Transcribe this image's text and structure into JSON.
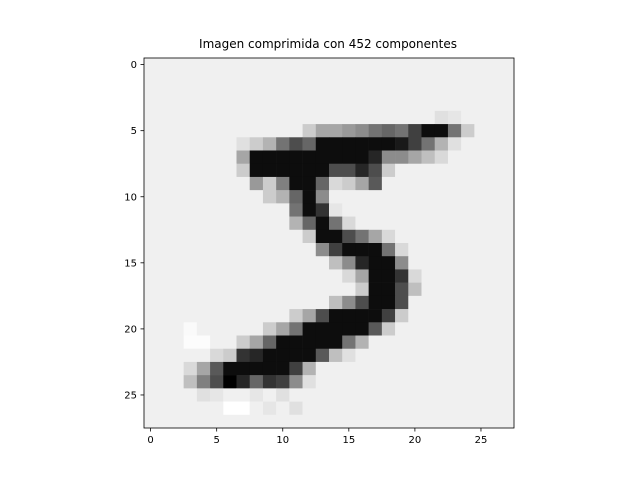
{
  "chart_data": {
    "type": "heatmap",
    "title": "Imagen comprimida con 452 componentes",
    "xlabel": "",
    "ylabel": "",
    "colormap": "gray_r",
    "value_range": [
      0,
      1
    ],
    "xlim": [
      -0.5,
      27.5
    ],
    "ylim": [
      27.5,
      -0.5
    ],
    "x_ticks": [
      0,
      5,
      10,
      15,
      20,
      25
    ],
    "y_ticks": [
      0,
      5,
      10,
      15,
      20,
      25
    ],
    "x_tick_labels": [
      "0",
      "5",
      "10",
      "15",
      "20",
      "25"
    ],
    "y_tick_labels": [
      "0",
      "5",
      "10",
      "15",
      "20",
      "25"
    ],
    "background_level": 0.06,
    "grid": false,
    "rows": 28,
    "cols": 28,
    "cells": [
      {
        "r": 4,
        "c": 22,
        "v": 0.12
      },
      {
        "r": 4,
        "c": 23,
        "v": 0.1
      },
      {
        "r": 5,
        "c": 12,
        "v": 0.2
      },
      {
        "r": 5,
        "c": 13,
        "v": 0.35
      },
      {
        "r": 5,
        "c": 14,
        "v": 0.35
      },
      {
        "r": 5,
        "c": 15,
        "v": 0.4
      },
      {
        "r": 5,
        "c": 16,
        "v": 0.45
      },
      {
        "r": 5,
        "c": 17,
        "v": 0.55
      },
      {
        "r": 5,
        "c": 18,
        "v": 0.6
      },
      {
        "r": 5,
        "c": 19,
        "v": 0.55
      },
      {
        "r": 5,
        "c": 20,
        "v": 0.75
      },
      {
        "r": 5,
        "c": 21,
        "v": 0.95
      },
      {
        "r": 5,
        "c": 22,
        "v": 0.95
      },
      {
        "r": 5,
        "c": 23,
        "v": 0.55
      },
      {
        "r": 5,
        "c": 24,
        "v": 0.2
      },
      {
        "r": 6,
        "c": 7,
        "v": 0.12
      },
      {
        "r": 6,
        "c": 8,
        "v": 0.2
      },
      {
        "r": 6,
        "c": 9,
        "v": 0.3
      },
      {
        "r": 6,
        "c": 10,
        "v": 0.55
      },
      {
        "r": 6,
        "c": 11,
        "v": 0.7
      },
      {
        "r": 6,
        "c": 12,
        "v": 0.6
      },
      {
        "r": 6,
        "c": 13,
        "v": 0.95
      },
      {
        "r": 6,
        "c": 14,
        "v": 0.95
      },
      {
        "r": 6,
        "c": 15,
        "v": 0.95
      },
      {
        "r": 6,
        "c": 16,
        "v": 0.95
      },
      {
        "r": 6,
        "c": 17,
        "v": 0.95
      },
      {
        "r": 6,
        "c": 18,
        "v": 0.95
      },
      {
        "r": 6,
        "c": 19,
        "v": 0.9
      },
      {
        "r": 6,
        "c": 20,
        "v": 0.75
      },
      {
        "r": 6,
        "c": 21,
        "v": 0.55
      },
      {
        "r": 6,
        "c": 22,
        "v": 0.3
      },
      {
        "r": 6,
        "c": 23,
        "v": 0.12
      },
      {
        "r": 7,
        "c": 7,
        "v": 0.35
      },
      {
        "r": 7,
        "c": 8,
        "v": 0.95
      },
      {
        "r": 7,
        "c": 9,
        "v": 0.95
      },
      {
        "r": 7,
        "c": 10,
        "v": 0.95
      },
      {
        "r": 7,
        "c": 11,
        "v": 0.95
      },
      {
        "r": 7,
        "c": 12,
        "v": 0.95
      },
      {
        "r": 7,
        "c": 13,
        "v": 0.95
      },
      {
        "r": 7,
        "c": 14,
        "v": 0.95
      },
      {
        "r": 7,
        "c": 15,
        "v": 0.95
      },
      {
        "r": 7,
        "c": 16,
        "v": 0.95
      },
      {
        "r": 7,
        "c": 17,
        "v": 0.85
      },
      {
        "r": 7,
        "c": 18,
        "v": 0.45
      },
      {
        "r": 7,
        "c": 19,
        "v": 0.45
      },
      {
        "r": 7,
        "c": 20,
        "v": 0.35
      },
      {
        "r": 7,
        "c": 21,
        "v": 0.25
      },
      {
        "r": 7,
        "c": 22,
        "v": 0.15
      },
      {
        "r": 8,
        "c": 7,
        "v": 0.2
      },
      {
        "r": 8,
        "c": 8,
        "v": 0.95
      },
      {
        "r": 8,
        "c": 9,
        "v": 0.95
      },
      {
        "r": 8,
        "c": 10,
        "v": 0.95
      },
      {
        "r": 8,
        "c": 11,
        "v": 0.95
      },
      {
        "r": 8,
        "c": 12,
        "v": 0.95
      },
      {
        "r": 8,
        "c": 13,
        "v": 0.95
      },
      {
        "r": 8,
        "c": 14,
        "v": 0.7
      },
      {
        "r": 8,
        "c": 15,
        "v": 0.7
      },
      {
        "r": 8,
        "c": 16,
        "v": 0.85
      },
      {
        "r": 8,
        "c": 17,
        "v": 0.7
      },
      {
        "r": 8,
        "c": 18,
        "v": 0.2
      },
      {
        "r": 9,
        "c": 8,
        "v": 0.4
      },
      {
        "r": 9,
        "c": 9,
        "v": 0.2
      },
      {
        "r": 9,
        "c": 10,
        "v": 0.5
      },
      {
        "r": 9,
        "c": 11,
        "v": 0.95
      },
      {
        "r": 9,
        "c": 12,
        "v": 0.95
      },
      {
        "r": 9,
        "c": 13,
        "v": 0.6
      },
      {
        "r": 9,
        "c": 14,
        "v": 0.15
      },
      {
        "r": 9,
        "c": 15,
        "v": 0.2
      },
      {
        "r": 9,
        "c": 16,
        "v": 0.35
      },
      {
        "r": 9,
        "c": 17,
        "v": 0.65
      },
      {
        "r": 10,
        "c": 9,
        "v": 0.2
      },
      {
        "r": 10,
        "c": 10,
        "v": 0.3
      },
      {
        "r": 10,
        "c": 11,
        "v": 0.6
      },
      {
        "r": 10,
        "c": 12,
        "v": 0.95
      },
      {
        "r": 10,
        "c": 13,
        "v": 0.45
      },
      {
        "r": 11,
        "c": 11,
        "v": 0.55
      },
      {
        "r": 11,
        "c": 12,
        "v": 0.95
      },
      {
        "r": 11,
        "c": 13,
        "v": 0.8
      },
      {
        "r": 11,
        "c": 14,
        "v": 0.1
      },
      {
        "r": 12,
        "c": 11,
        "v": 0.3
      },
      {
        "r": 12,
        "c": 12,
        "v": 0.6
      },
      {
        "r": 12,
        "c": 13,
        "v": 0.95
      },
      {
        "r": 12,
        "c": 14,
        "v": 0.55
      },
      {
        "r": 12,
        "c": 15,
        "v": 0.15
      },
      {
        "r": 13,
        "c": 12,
        "v": 0.2
      },
      {
        "r": 13,
        "c": 13,
        "v": 0.95
      },
      {
        "r": 13,
        "c": 14,
        "v": 0.95
      },
      {
        "r": 13,
        "c": 15,
        "v": 0.7
      },
      {
        "r": 13,
        "c": 16,
        "v": 0.55
      },
      {
        "r": 13,
        "c": 17,
        "v": 0.35
      },
      {
        "r": 13,
        "c": 18,
        "v": 0.15
      },
      {
        "r": 14,
        "c": 13,
        "v": 0.45
      },
      {
        "r": 14,
        "c": 14,
        "v": 0.75
      },
      {
        "r": 14,
        "c": 15,
        "v": 0.95
      },
      {
        "r": 14,
        "c": 16,
        "v": 0.95
      },
      {
        "r": 14,
        "c": 17,
        "v": 0.95
      },
      {
        "r": 14,
        "c": 18,
        "v": 0.55
      },
      {
        "r": 14,
        "c": 19,
        "v": 0.15
      },
      {
        "r": 15,
        "c": 14,
        "v": 0.25
      },
      {
        "r": 15,
        "c": 15,
        "v": 0.45
      },
      {
        "r": 15,
        "c": 16,
        "v": 0.85
      },
      {
        "r": 15,
        "c": 17,
        "v": 0.95
      },
      {
        "r": 15,
        "c": 18,
        "v": 0.95
      },
      {
        "r": 15,
        "c": 19,
        "v": 0.45
      },
      {
        "r": 16,
        "c": 15,
        "v": 0.15
      },
      {
        "r": 16,
        "c": 16,
        "v": 0.35
      },
      {
        "r": 16,
        "c": 17,
        "v": 0.95
      },
      {
        "r": 16,
        "c": 18,
        "v": 0.95
      },
      {
        "r": 16,
        "c": 19,
        "v": 0.8
      },
      {
        "r": 16,
        "c": 20,
        "v": 0.15
      },
      {
        "r": 17,
        "c": 16,
        "v": 0.2
      },
      {
        "r": 17,
        "c": 17,
        "v": 0.95
      },
      {
        "r": 17,
        "c": 18,
        "v": 0.95
      },
      {
        "r": 17,
        "c": 19,
        "v": 0.7
      },
      {
        "r": 17,
        "c": 20,
        "v": 0.25
      },
      {
        "r": 18,
        "c": 14,
        "v": 0.25
      },
      {
        "r": 18,
        "c": 15,
        "v": 0.45
      },
      {
        "r": 18,
        "c": 16,
        "v": 0.7
      },
      {
        "r": 18,
        "c": 17,
        "v": 0.95
      },
      {
        "r": 18,
        "c": 18,
        "v": 0.95
      },
      {
        "r": 18,
        "c": 19,
        "v": 0.7
      },
      {
        "r": 19,
        "c": 11,
        "v": 0.2
      },
      {
        "r": 19,
        "c": 12,
        "v": 0.35
      },
      {
        "r": 19,
        "c": 13,
        "v": 0.7
      },
      {
        "r": 19,
        "c": 14,
        "v": 0.95
      },
      {
        "r": 19,
        "c": 15,
        "v": 0.95
      },
      {
        "r": 19,
        "c": 16,
        "v": 0.95
      },
      {
        "r": 19,
        "c": 17,
        "v": 0.95
      },
      {
        "r": 19,
        "c": 18,
        "v": 0.75
      },
      {
        "r": 19,
        "c": 19,
        "v": 0.2
      },
      {
        "r": 20,
        "c": 9,
        "v": 0.2
      },
      {
        "r": 20,
        "c": 10,
        "v": 0.35
      },
      {
        "r": 20,
        "c": 11,
        "v": 0.55
      },
      {
        "r": 20,
        "c": 12,
        "v": 0.95
      },
      {
        "r": 20,
        "c": 13,
        "v": 0.95
      },
      {
        "r": 20,
        "c": 14,
        "v": 0.95
      },
      {
        "r": 20,
        "c": 15,
        "v": 0.95
      },
      {
        "r": 20,
        "c": 16,
        "v": 0.95
      },
      {
        "r": 20,
        "c": 17,
        "v": 0.65
      },
      {
        "r": 20,
        "c": 18,
        "v": 0.2
      },
      {
        "r": 21,
        "c": 7,
        "v": 0.2
      },
      {
        "r": 21,
        "c": 8,
        "v": 0.35
      },
      {
        "r": 21,
        "c": 9,
        "v": 0.6
      },
      {
        "r": 21,
        "c": 10,
        "v": 0.95
      },
      {
        "r": 21,
        "c": 11,
        "v": 0.95
      },
      {
        "r": 21,
        "c": 12,
        "v": 0.95
      },
      {
        "r": 21,
        "c": 13,
        "v": 0.95
      },
      {
        "r": 21,
        "c": 14,
        "v": 0.95
      },
      {
        "r": 21,
        "c": 15,
        "v": 0.55
      },
      {
        "r": 21,
        "c": 16,
        "v": 0.3
      },
      {
        "r": 22,
        "c": 5,
        "v": 0.15
      },
      {
        "r": 22,
        "c": 6,
        "v": 0.2
      },
      {
        "r": 22,
        "c": 7,
        "v": 0.8
      },
      {
        "r": 22,
        "c": 8,
        "v": 0.85
      },
      {
        "r": 22,
        "c": 9,
        "v": 0.95
      },
      {
        "r": 22,
        "c": 10,
        "v": 0.95
      },
      {
        "r": 22,
        "c": 11,
        "v": 0.95
      },
      {
        "r": 22,
        "c": 12,
        "v": 0.95
      },
      {
        "r": 22,
        "c": 13,
        "v": 0.65
      },
      {
        "r": 22,
        "c": 14,
        "v": 0.25
      },
      {
        "r": 22,
        "c": 15,
        "v": 0.12
      },
      {
        "r": 23,
        "c": 3,
        "v": 0.15
      },
      {
        "r": 23,
        "c": 4,
        "v": 0.35
      },
      {
        "r": 23,
        "c": 5,
        "v": 0.65
      },
      {
        "r": 23,
        "c": 6,
        "v": 0.95
      },
      {
        "r": 23,
        "c": 7,
        "v": 0.95
      },
      {
        "r": 23,
        "c": 8,
        "v": 0.95
      },
      {
        "r": 23,
        "c": 9,
        "v": 0.95
      },
      {
        "r": 23,
        "c": 10,
        "v": 0.95
      },
      {
        "r": 23,
        "c": 11,
        "v": 0.75
      },
      {
        "r": 23,
        "c": 12,
        "v": 0.3
      },
      {
        "r": 24,
        "c": 3,
        "v": 0.25
      },
      {
        "r": 24,
        "c": 4,
        "v": 0.5
      },
      {
        "r": 24,
        "c": 5,
        "v": 0.7
      },
      {
        "r": 24,
        "c": 6,
        "v": 1.0
      },
      {
        "r": 24,
        "c": 7,
        "v": 0.85
      },
      {
        "r": 24,
        "c": 8,
        "v": 0.6
      },
      {
        "r": 24,
        "c": 9,
        "v": 0.8
      },
      {
        "r": 24,
        "c": 10,
        "v": 0.75
      },
      {
        "r": 24,
        "c": 11,
        "v": 0.45
      },
      {
        "r": 24,
        "c": 12,
        "v": 0.12
      },
      {
        "r": 25,
        "c": 4,
        "v": 0.12
      },
      {
        "r": 25,
        "c": 5,
        "v": 0.1
      },
      {
        "r": 25,
        "c": 8,
        "v": 0.1
      },
      {
        "r": 25,
        "c": 10,
        "v": 0.12
      },
      {
        "r": 26,
        "c": 6,
        "v": 0.0
      },
      {
        "r": 26,
        "c": 7,
        "v": 0.0
      },
      {
        "r": 26,
        "c": 9,
        "v": 0.1
      },
      {
        "r": 26,
        "c": 11,
        "v": 0.12
      },
      {
        "r": 20,
        "c": 3,
        "v": 0.02
      },
      {
        "r": 21,
        "c": 3,
        "v": 0.01
      },
      {
        "r": 21,
        "c": 4,
        "v": 0.01
      }
    ]
  }
}
